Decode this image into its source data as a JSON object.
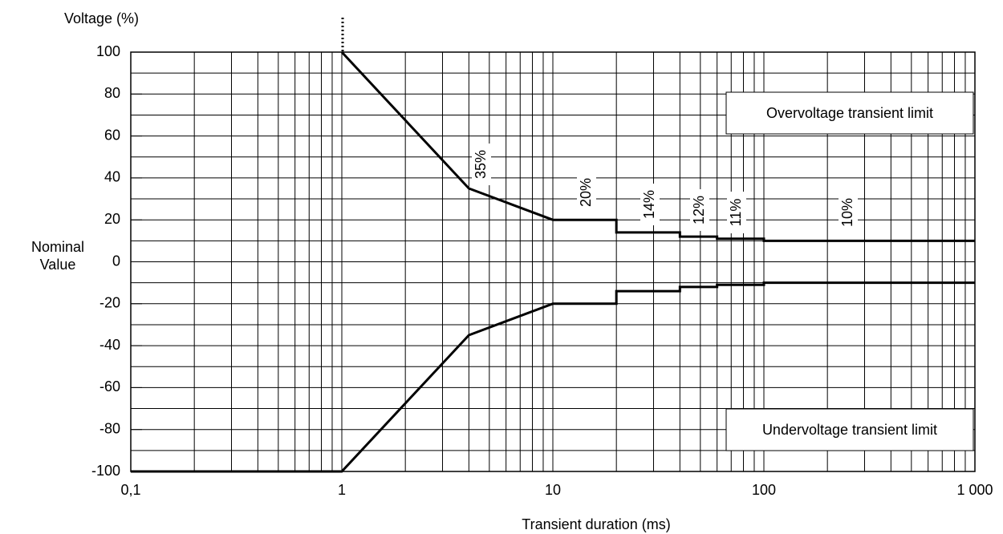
{
  "chart_data": {
    "type": "line",
    "ylabel": "Voltage (%)",
    "ylabel2": "Nominal",
    "ylabel3": "Value",
    "xlabel": "Transient duration (ms)",
    "xscale": "log",
    "xlim": [
      0.1,
      1000
    ],
    "ylim": [
      -100,
      100
    ],
    "xticks": [
      {
        "value": 0.1,
        "label": "0,1"
      },
      1,
      10,
      100,
      {
        "value": 1000,
        "label": "1 000"
      }
    ],
    "yticks": [
      -100,
      -80,
      -60,
      -40,
      -20,
      0,
      20,
      40,
      60,
      80,
      100
    ],
    "xgrid": [
      0.2,
      0.3,
      0.4,
      0.5,
      0.6,
      0.7,
      0.8,
      0.9,
      1,
      2,
      3,
      4,
      5,
      6,
      7,
      8,
      9,
      10,
      20,
      30,
      40,
      50,
      60,
      70,
      80,
      90,
      100,
      200,
      300,
      400,
      500,
      600,
      700,
      800,
      900
    ],
    "ygrid": [
      -90,
      -80,
      -70,
      -60,
      -50,
      -40,
      -30,
      -20,
      -10,
      0,
      10,
      20,
      30,
      40,
      50,
      60,
      70,
      80,
      90
    ],
    "grid": true,
    "series": [
      {
        "name": "Overvoltage transient limit",
        "color": "#000000",
        "x": [
          1,
          4,
          10,
          20,
          20,
          40,
          40,
          60,
          60,
          100,
          100,
          1000
        ],
        "values": [
          100,
          35,
          20,
          20,
          14,
          14,
          12,
          12,
          11,
          11,
          10,
          10
        ]
      },
      {
        "name": "Undervoltage transient limit",
        "color": "#000000",
        "x": [
          0.1,
          1,
          4,
          10,
          20,
          20,
          40,
          40,
          60,
          60,
          100,
          100,
          1000
        ],
        "values": [
          -100,
          -100,
          -35,
          -20,
          -20,
          -14,
          -14,
          -12,
          -12,
          -11,
          -11,
          -10,
          -10
        ]
      }
    ],
    "annotations": [
      "35%",
      "20%",
      "14%",
      "12%",
      "11%",
      "10%"
    ]
  }
}
